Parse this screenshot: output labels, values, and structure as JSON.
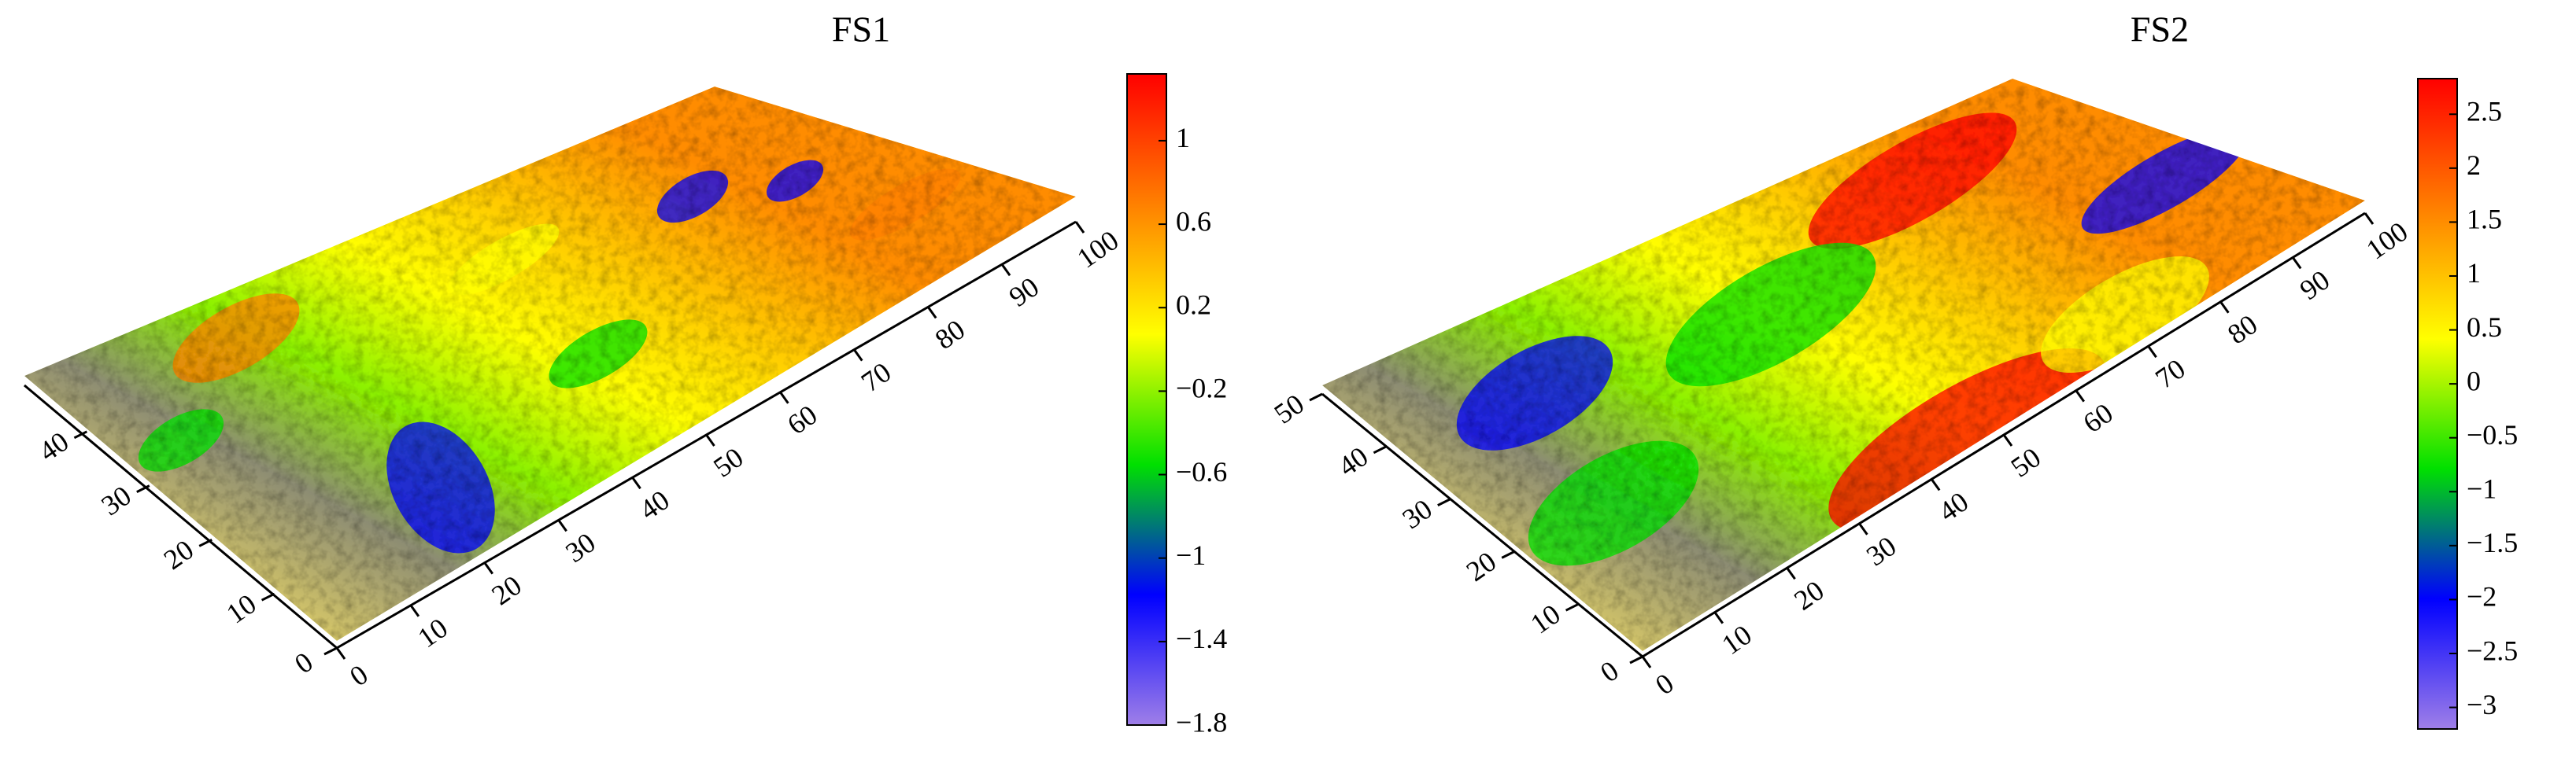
{
  "chart_data": [
    {
      "type": "surface",
      "title": "FS1",
      "xlim": [
        0,
        100
      ],
      "xticks": [
        0,
        10,
        20,
        30,
        40,
        50,
        60,
        70,
        80,
        90,
        100
      ],
      "ylim": [
        0,
        50
      ],
      "yticks": [
        0,
        10,
        20,
        30,
        40
      ],
      "clim": [
        -1.8,
        1.32
      ],
      "cticks": [
        1,
        0.6,
        0.2,
        {
          "value": -0.2,
          "label": "−0.2"
        },
        {
          "value": -0.6,
          "label": "−0.6"
        },
        {
          "value": -1,
          "label": "−1"
        },
        {
          "value": -1.4,
          "label": "−1.4"
        },
        {
          "value": -1.8,
          "label": "−1.8"
        }
      ],
      "colormap": [
        "#9f7fe8",
        "#0000ff",
        "#00e000",
        "#ffff00",
        "#ff8000",
        "#ff0000"
      ]
    },
    {
      "type": "surface",
      "title": "FS2",
      "xlim": [
        0,
        100
      ],
      "xticks": [
        0,
        10,
        20,
        30,
        40,
        50,
        60,
        70,
        80,
        90,
        100
      ],
      "ylim": [
        0,
        50
      ],
      "yticks": [
        0,
        10,
        20,
        30,
        40,
        50
      ],
      "clim": [
        -3.2,
        2.83
      ],
      "cticks": [
        2.5,
        2,
        1.5,
        1,
        0.5,
        0,
        {
          "value": -0.5,
          "label": "−0.5"
        },
        {
          "value": -1,
          "label": "−1"
        },
        {
          "value": -1.5,
          "label": "−1.5"
        },
        {
          "value": -2,
          "label": "−2"
        },
        {
          "value": -2.5,
          "label": "−2.5"
        },
        {
          "value": -3,
          "label": "−3"
        }
      ],
      "colormap": [
        "#9f7fe8",
        "#0000ff",
        "#00e000",
        "#ffff00",
        "#ff8000",
        "#ff0000"
      ]
    }
  ]
}
